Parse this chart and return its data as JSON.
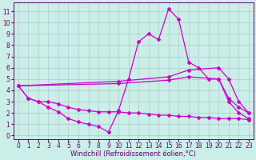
{
  "xlabel": "Windchill (Refroidissement éolien,°C)",
  "bg_color": "#cceee8",
  "grid_color": "#aacccc",
  "line_color": "#cc00cc",
  "x_ticks": [
    0,
    1,
    2,
    3,
    4,
    5,
    6,
    7,
    8,
    9,
    10,
    11,
    12,
    13,
    14,
    15,
    16,
    17,
    18,
    19,
    20,
    21,
    22,
    23
  ],
  "y_ticks": [
    0,
    1,
    2,
    3,
    4,
    5,
    6,
    7,
    8,
    9,
    10,
    11
  ],
  "xlim": [
    -0.5,
    23.5
  ],
  "ylim": [
    -0.3,
    11.8
  ],
  "lines": [
    {
      "x": [
        0,
        1,
        2,
        3,
        4,
        5,
        6,
        7,
        8,
        9,
        10,
        11,
        12,
        13,
        14,
        15,
        16,
        17,
        18,
        19,
        20,
        21,
        22,
        23
      ],
      "y": [
        4.4,
        3.3,
        3.0,
        2.5,
        2.1,
        1.5,
        1.2,
        1.0,
        0.8,
        0.3,
        2.2,
        5.0,
        8.3,
        9.0,
        8.5,
        11.2,
        10.3,
        6.5,
        6.0,
        5.0,
        5.0,
        3.0,
        2.0,
        1.5
      ]
    },
    {
      "x": [
        0,
        10,
        15,
        17,
        20,
        21,
        22,
        23
      ],
      "y": [
        4.4,
        4.8,
        5.2,
        5.8,
        6.0,
        5.0,
        3.0,
        2.0
      ]
    },
    {
      "x": [
        0,
        10,
        15,
        17,
        20,
        21,
        22,
        23
      ],
      "y": [
        4.4,
        4.6,
        4.9,
        5.2,
        5.0,
        3.3,
        2.5,
        2.0
      ]
    },
    {
      "x": [
        0,
        1,
        2,
        3,
        4,
        5,
        6,
        7,
        8,
        9,
        10,
        11,
        12,
        13,
        14,
        15,
        16,
        17,
        18,
        19,
        20,
        21,
        22,
        23
      ],
      "y": [
        4.4,
        3.3,
        3.0,
        3.0,
        2.8,
        2.5,
        2.3,
        2.2,
        2.1,
        2.1,
        2.1,
        2.0,
        2.0,
        1.9,
        1.8,
        1.8,
        1.7,
        1.7,
        1.6,
        1.6,
        1.5,
        1.5,
        1.5,
        1.4
      ]
    }
  ],
  "tick_fontsize": 5.5,
  "xlabel_fontsize": 6.0,
  "tick_color": "#660066",
  "spine_color": "#660066",
  "linewidth": 0.9,
  "markersize": 2.0
}
